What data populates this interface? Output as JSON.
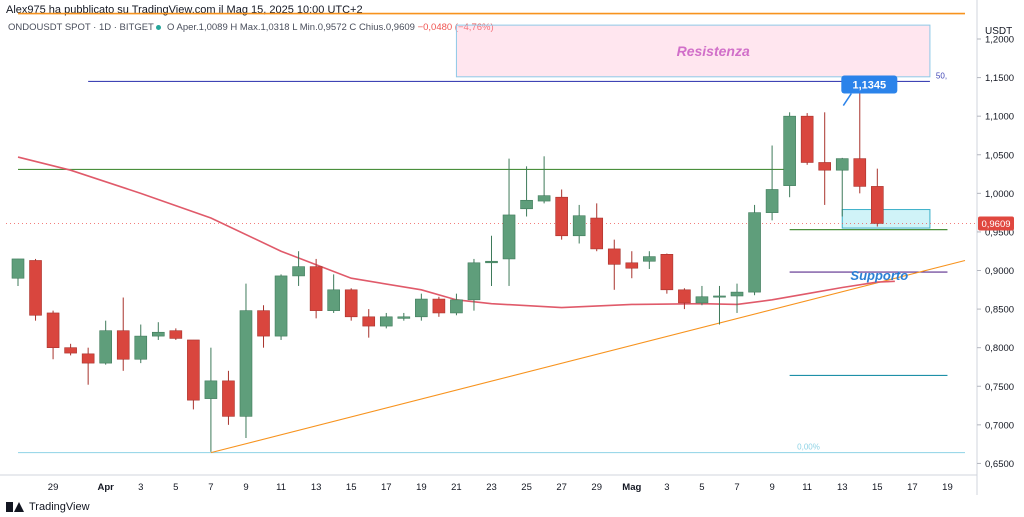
{
  "header": {
    "published_by": "Alex975 ha pubblicato su TradingView.com il Mag 15, 2025 10:00 UTC+2"
  },
  "symbol_info": {
    "symbol": "ONDOUSDT SPOT · 1D · BITGET",
    "open_label": "O",
    "open": "Aper.1,0089",
    "high_label": "H",
    "high": "Max.1,0318",
    "low_label": "L",
    "low": "Min.0,9572",
    "close_label": "C",
    "close": "Chius.0,9609",
    "change": "−0,0480 (−4,76%)"
  },
  "footer": {
    "brand": "TradingView"
  },
  "chart_data": {
    "type": "candlestick",
    "y_axis_label": "USDT",
    "ylim": [
      0.635,
      1.235
    ],
    "y_ticks": [
      {
        "v": 1.2,
        "l": "1,2000"
      },
      {
        "v": 1.15,
        "l": "1,1500"
      },
      {
        "v": 1.1,
        "l": "1,1000"
      },
      {
        "v": 1.05,
        "l": "1,0500"
      },
      {
        "v": 1.0,
        "l": "1,0000"
      },
      {
        "v": 0.95,
        "l": "0,9500"
      },
      {
        "v": 0.9,
        "l": "0,9000"
      },
      {
        "v": 0.85,
        "l": "0,8500"
      },
      {
        "v": 0.8,
        "l": "0,8000"
      },
      {
        "v": 0.75,
        "l": "0,7500"
      },
      {
        "v": 0.7,
        "l": "0,7000"
      },
      {
        "v": 0.65,
        "l": "0,6500"
      }
    ],
    "x_ticks": [
      {
        "d": "2025-03-29",
        "l": "29"
      },
      {
        "d": "2025-04-01",
        "l": "Apr"
      },
      {
        "d": "2025-04-03",
        "l": "3"
      },
      {
        "d": "2025-04-05",
        "l": "5"
      },
      {
        "d": "2025-04-07",
        "l": "7"
      },
      {
        "d": "2025-04-09",
        "l": "9"
      },
      {
        "d": "2025-04-11",
        "l": "11"
      },
      {
        "d": "2025-04-13",
        "l": "13"
      },
      {
        "d": "2025-04-15",
        "l": "15"
      },
      {
        "d": "2025-04-17",
        "l": "17"
      },
      {
        "d": "2025-04-19",
        "l": "19"
      },
      {
        "d": "2025-04-21",
        "l": "21"
      },
      {
        "d": "2025-04-23",
        "l": "23"
      },
      {
        "d": "2025-04-25",
        "l": "25"
      },
      {
        "d": "2025-04-27",
        "l": "27"
      },
      {
        "d": "2025-04-29",
        "l": "29"
      },
      {
        "d": "2025-05-01",
        "l": "Mag"
      },
      {
        "d": "2025-05-03",
        "l": "3"
      },
      {
        "d": "2025-05-05",
        "l": "5"
      },
      {
        "d": "2025-05-07",
        "l": "7"
      },
      {
        "d": "2025-05-09",
        "l": "9"
      },
      {
        "d": "2025-05-11",
        "l": "11"
      },
      {
        "d": "2025-05-13",
        "l": "13"
      },
      {
        "d": "2025-05-15",
        "l": "15"
      },
      {
        "d": "2025-05-17",
        "l": "17"
      },
      {
        "d": "2025-05-19",
        "l": "19"
      }
    ],
    "x_range": [
      "2025-03-27",
      "2025-05-20"
    ],
    "candles": [
      {
        "d": "2025-03-27",
        "o": 0.89,
        "h": 0.915,
        "l": 0.88,
        "c": 0.915
      },
      {
        "d": "2025-03-28",
        "o": 0.913,
        "h": 0.915,
        "l": 0.835,
        "c": 0.842
      },
      {
        "d": "2025-03-29",
        "o": 0.845,
        "h": 0.848,
        "l": 0.785,
        "c": 0.8
      },
      {
        "d": "2025-03-30",
        "o": 0.8,
        "h": 0.805,
        "l": 0.79,
        "c": 0.793
      },
      {
        "d": "2025-03-31",
        "o": 0.792,
        "h": 0.8,
        "l": 0.752,
        "c": 0.78
      },
      {
        "d": "2025-04-01",
        "o": 0.78,
        "h": 0.835,
        "l": 0.778,
        "c": 0.822
      },
      {
        "d": "2025-04-02",
        "o": 0.822,
        "h": 0.865,
        "l": 0.77,
        "c": 0.785
      },
      {
        "d": "2025-04-03",
        "o": 0.785,
        "h": 0.83,
        "l": 0.78,
        "c": 0.815
      },
      {
        "d": "2025-04-04",
        "o": 0.815,
        "h": 0.833,
        "l": 0.81,
        "c": 0.82
      },
      {
        "d": "2025-04-05",
        "o": 0.822,
        "h": 0.825,
        "l": 0.81,
        "c": 0.812
      },
      {
        "d": "2025-04-06",
        "o": 0.81,
        "h": 0.81,
        "l": 0.72,
        "c": 0.732
      },
      {
        "d": "2025-04-07",
        "o": 0.734,
        "h": 0.8,
        "l": 0.665,
        "c": 0.757
      },
      {
        "d": "2025-04-08",
        "o": 0.757,
        "h": 0.77,
        "l": 0.7,
        "c": 0.711
      },
      {
        "d": "2025-04-09",
        "o": 0.711,
        "h": 0.883,
        "l": 0.683,
        "c": 0.848
      },
      {
        "d": "2025-04-10",
        "o": 0.848,
        "h": 0.855,
        "l": 0.8,
        "c": 0.815
      },
      {
        "d": "2025-04-11",
        "o": 0.815,
        "h": 0.895,
        "l": 0.81,
        "c": 0.893
      },
      {
        "d": "2025-04-12",
        "o": 0.893,
        "h": 0.925,
        "l": 0.88,
        "c": 0.905
      },
      {
        "d": "2025-04-13",
        "o": 0.905,
        "h": 0.915,
        "l": 0.838,
        "c": 0.848
      },
      {
        "d": "2025-04-14",
        "o": 0.848,
        "h": 0.895,
        "l": 0.845,
        "c": 0.875
      },
      {
        "d": "2025-04-15",
        "o": 0.875,
        "h": 0.877,
        "l": 0.835,
        "c": 0.84
      },
      {
        "d": "2025-04-16",
        "o": 0.84,
        "h": 0.85,
        "l": 0.813,
        "c": 0.828
      },
      {
        "d": "2025-04-17",
        "o": 0.828,
        "h": 0.845,
        "l": 0.825,
        "c": 0.84
      },
      {
        "d": "2025-04-18",
        "o": 0.838,
        "h": 0.845,
        "l": 0.835,
        "c": 0.84
      },
      {
        "d": "2025-04-19",
        "o": 0.84,
        "h": 0.87,
        "l": 0.835,
        "c": 0.863
      },
      {
        "d": "2025-04-20",
        "o": 0.863,
        "h": 0.866,
        "l": 0.84,
        "c": 0.845
      },
      {
        "d": "2025-04-21",
        "o": 0.845,
        "h": 0.87,
        "l": 0.842,
        "c": 0.862
      },
      {
        "d": "2025-04-22",
        "o": 0.862,
        "h": 0.915,
        "l": 0.848,
        "c": 0.91
      },
      {
        "d": "2025-04-23",
        "o": 0.91,
        "h": 0.945,
        "l": 0.88,
        "c": 0.912
      },
      {
        "d": "2025-04-24",
        "o": 0.915,
        "h": 1.045,
        "l": 0.88,
        "c": 0.972
      },
      {
        "d": "2025-04-25",
        "o": 0.98,
        "h": 1.035,
        "l": 0.97,
        "c": 0.991
      },
      {
        "d": "2025-04-26",
        "o": 0.99,
        "h": 1.048,
        "l": 0.987,
        "c": 0.997
      },
      {
        "d": "2025-04-27",
        "o": 0.995,
        "h": 1.005,
        "l": 0.94,
        "c": 0.945
      },
      {
        "d": "2025-04-28",
        "o": 0.945,
        "h": 0.985,
        "l": 0.935,
        "c": 0.971
      },
      {
        "d": "2025-04-29",
        "o": 0.968,
        "h": 0.987,
        "l": 0.925,
        "c": 0.928
      },
      {
        "d": "2025-04-30",
        "o": 0.928,
        "h": 0.94,
        "l": 0.875,
        "c": 0.908
      },
      {
        "d": "2025-05-01",
        "o": 0.91,
        "h": 0.925,
        "l": 0.89,
        "c": 0.903
      },
      {
        "d": "2025-05-02",
        "o": 0.912,
        "h": 0.925,
        "l": 0.902,
        "c": 0.918
      },
      {
        "d": "2025-05-03",
        "o": 0.921,
        "h": 0.922,
        "l": 0.87,
        "c": 0.875
      },
      {
        "d": "2025-05-04",
        "o": 0.875,
        "h": 0.877,
        "l": 0.85,
        "c": 0.858
      },
      {
        "d": "2025-05-05",
        "o": 0.858,
        "h": 0.88,
        "l": 0.855,
        "c": 0.866
      },
      {
        "d": "2025-05-06",
        "o": 0.866,
        "h": 0.88,
        "l": 0.83,
        "c": 0.867
      },
      {
        "d": "2025-05-07",
        "o": 0.867,
        "h": 0.883,
        "l": 0.845,
        "c": 0.872
      },
      {
        "d": "2025-05-08",
        "o": 0.872,
        "h": 0.985,
        "l": 0.868,
        "c": 0.975
      },
      {
        "d": "2025-05-09",
        "o": 0.975,
        "h": 1.062,
        "l": 0.965,
        "c": 1.005
      },
      {
        "d": "2025-05-10",
        "o": 1.01,
        "h": 1.105,
        "l": 0.995,
        "c": 1.1
      },
      {
        "d": "2025-05-11",
        "o": 1.1,
        "h": 1.104,
        "l": 1.037,
        "c": 1.04
      },
      {
        "d": "2025-05-12",
        "o": 1.04,
        "h": 1.105,
        "l": 0.985,
        "c": 1.03
      },
      {
        "d": "2025-05-13",
        "o": 1.03,
        "h": 1.046,
        "l": 0.97,
        "c": 1.045
      },
      {
        "d": "2025-05-14",
        "o": 1.045,
        "h": 1.135,
        "l": 1.0,
        "c": 1.009
      },
      {
        "d": "2025-05-15",
        "o": 1.009,
        "h": 1.032,
        "l": 0.957,
        "c": 0.961
      }
    ],
    "moving_average": {
      "color": "#e05a6a",
      "points": [
        [
          "2025-03-27",
          1.047
        ],
        [
          "2025-03-30",
          1.03
        ],
        [
          "2025-04-03",
          1.0
        ],
        [
          "2025-04-07",
          0.968
        ],
        [
          "2025-04-11",
          0.925
        ],
        [
          "2025-04-15",
          0.89
        ],
        [
          "2025-04-19",
          0.875
        ],
        [
          "2025-04-21",
          0.862
        ],
        [
          "2025-04-23",
          0.857
        ],
        [
          "2025-04-27",
          0.852
        ],
        [
          "2025-05-01",
          0.856
        ],
        [
          "2025-05-05",
          0.857
        ],
        [
          "2025-05-07",
          0.856
        ],
        [
          "2025-05-09",
          0.862
        ],
        [
          "2025-05-11",
          0.87
        ],
        [
          "2025-05-13",
          0.878
        ],
        [
          "2025-05-15",
          0.885
        ],
        [
          "2025-05-16",
          0.886
        ]
      ]
    },
    "horizontal_levels": [
      {
        "v": 1.233,
        "color": "#f7931e",
        "from": "2025-03-27",
        "to": "2025-05-20",
        "width": 1.6
      },
      {
        "v": 1.145,
        "color": "#3f44b5",
        "from": "2025-03-31",
        "to": "2025-05-18",
        "width": 1.2,
        "label": "50,"
      },
      {
        "v": 1.031,
        "color": "#4a8f3c",
        "from": "2025-03-27",
        "to": "2025-05-10",
        "width": 1.2
      },
      {
        "v": 0.953,
        "color": "#4a8f3c",
        "from": "2025-05-10",
        "to": "2025-05-19",
        "width": 1.2
      },
      {
        "v": 0.898,
        "color": "#5b2d8c",
        "from": "2025-05-10",
        "to": "2025-05-19",
        "width": 1.2
      },
      {
        "v": 0.764,
        "color": "#1e90a8",
        "from": "2025-05-10",
        "to": "2025-05-19",
        "width": 1.2
      },
      {
        "v": 0.664,
        "color": "#8ed3e6",
        "from": "2025-03-27",
        "to": "2025-05-20",
        "width": 1.0,
        "label": "0,00%"
      }
    ],
    "trendline": {
      "color": "#f7931e",
      "from": [
        "2025-04-07",
        0.664
      ],
      "to": [
        "2025-05-20",
        0.913
      ]
    },
    "resistance_zone": {
      "from": "2025-04-21",
      "to": "2025-05-18",
      "top": 1.218,
      "bottom": 1.151,
      "label": "Resistenza"
    },
    "support_label": "Supporto",
    "small_zone": {
      "from": "2025-05-13",
      "to": "2025-05-18",
      "top": 0.979,
      "bottom": 0.955
    },
    "price_label": {
      "value": 1.1345,
      "text": "1,1345"
    },
    "last_price": {
      "value": 0.9609,
      "text": "0,9609"
    }
  }
}
